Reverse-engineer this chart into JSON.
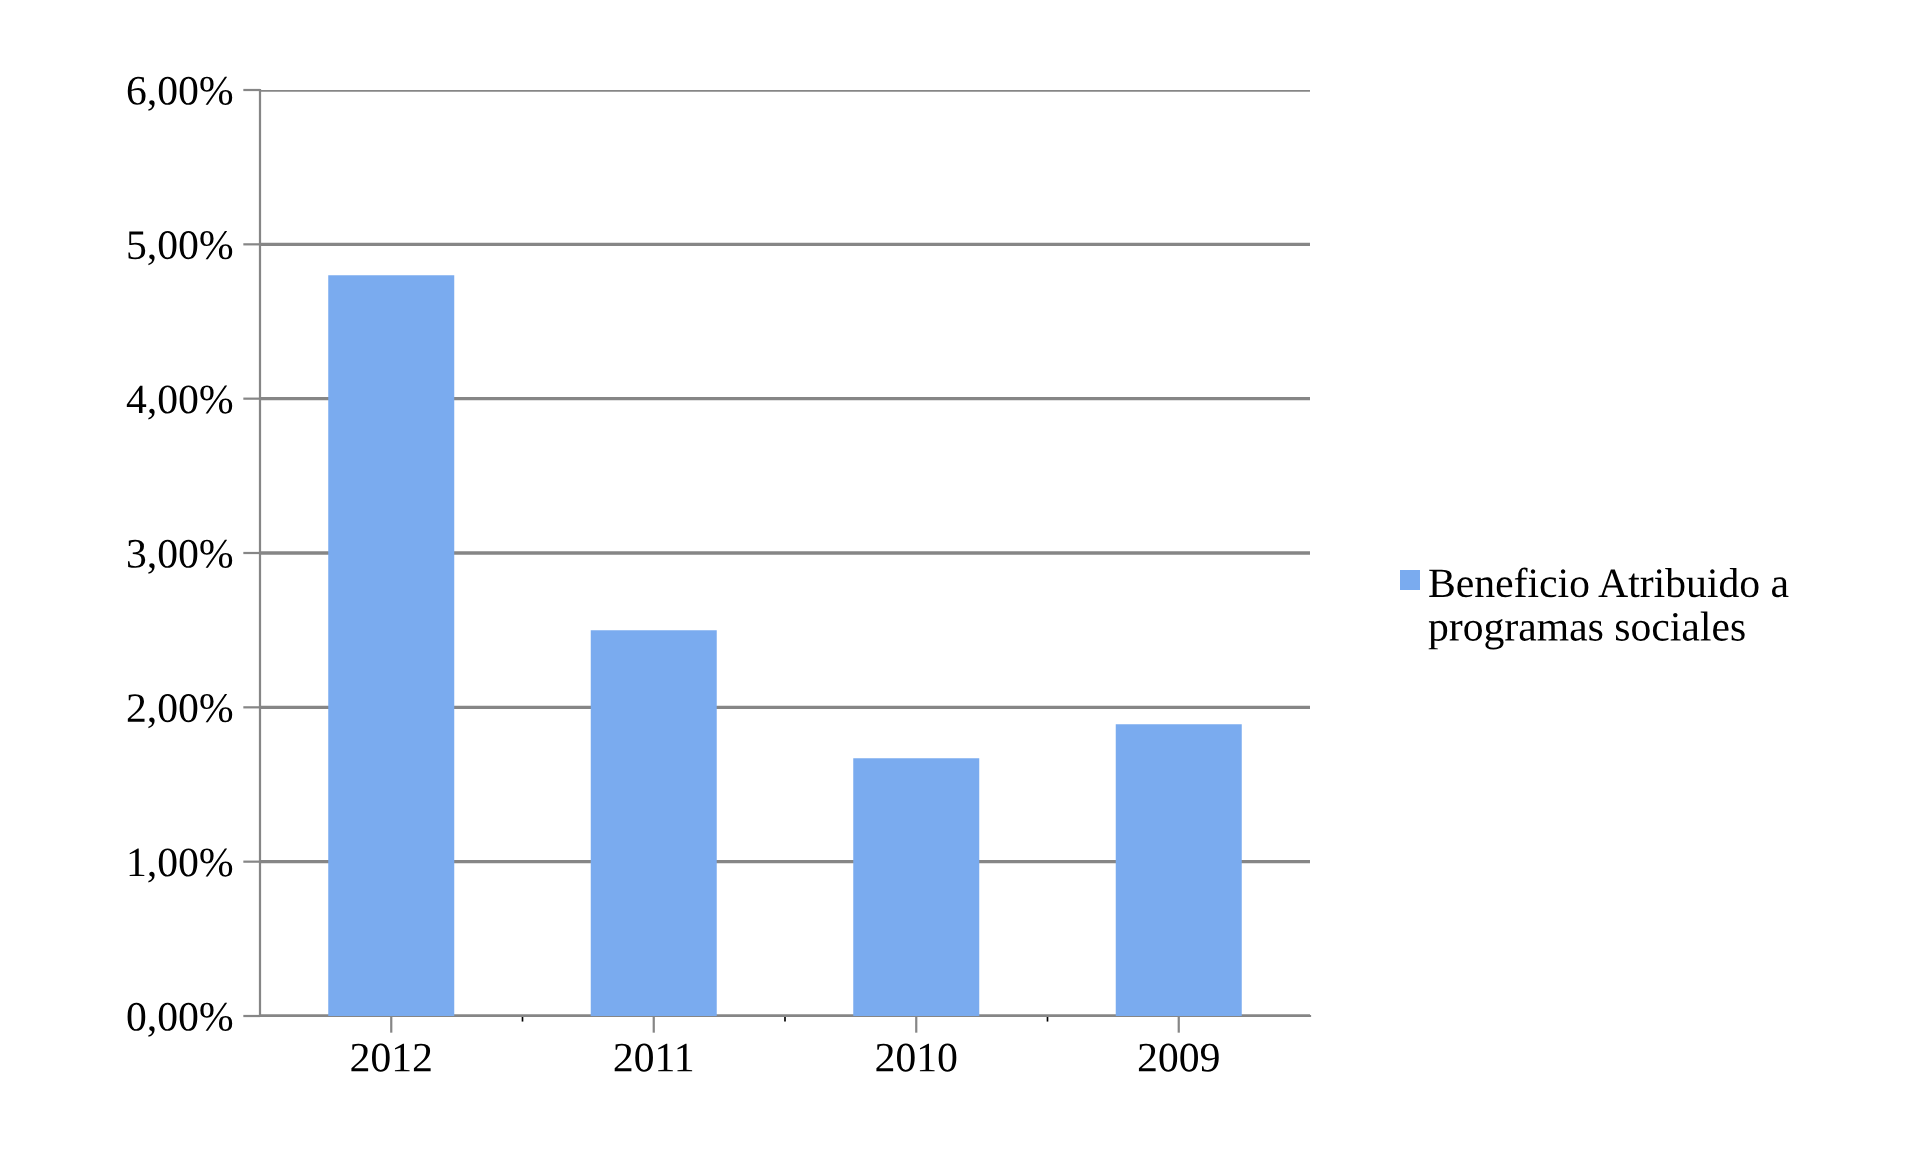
{
  "chart_data": {
    "type": "bar",
    "categories": [
      "2012",
      "2011",
      "2010",
      "2009"
    ],
    "series": [
      {
        "name": "Beneficio Atribuido a programas sociales",
        "color": "#7aabef",
        "values": [
          4.8,
          2.5,
          1.67,
          1.89
        ]
      }
    ],
    "ylim": [
      0,
      6
    ],
    "yticks": [
      {
        "value": 0,
        "label": "0,00%"
      },
      {
        "value": 1,
        "label": "1,00%"
      },
      {
        "value": 2,
        "label": "2,00%"
      },
      {
        "value": 3,
        "label": "3,00%"
      },
      {
        "value": 4,
        "label": "4,00%"
      },
      {
        "value": 5,
        "label": "5,00%"
      },
      {
        "value": 6,
        "label": "6,00%"
      }
    ],
    "grid": "y",
    "legend": "right"
  }
}
